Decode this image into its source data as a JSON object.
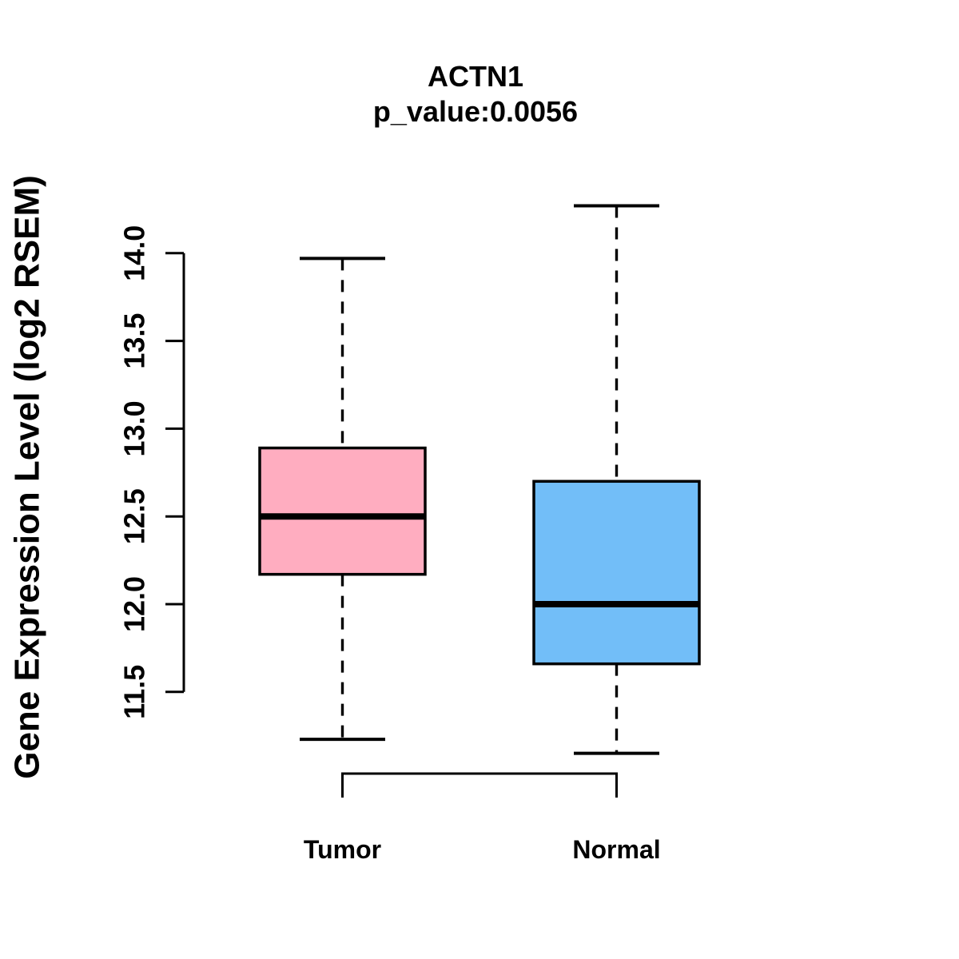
{
  "title": "ACTN1",
  "subtitle": "p_value:0.0056",
  "colors": {
    "tumor_fill": "#FFADC0",
    "normal_fill": "#72BEF8",
    "line": "#000000",
    "background": "#FFFFFF"
  },
  "chart_data": {
    "type": "boxplot",
    "title": "ACTN1",
    "subtitle": "p_value:0.0056",
    "p_value": 0.0056,
    "gene": "ACTN1",
    "xlabel": "",
    "ylabel": "Gene Expression Level (log2 RSEM)",
    "categories": [
      "Tumor",
      "Normal"
    ],
    "y_tick_labels": [
      "11.5",
      "12.0",
      "12.5",
      "13.0",
      "13.5",
      "14.0"
    ],
    "y_ticks": [
      11.5,
      12.0,
      12.5,
      13.0,
      13.5,
      14.0
    ],
    "ylim": [
      11.1,
      14.35
    ],
    "grid": false,
    "legend": "none",
    "series": [
      {
        "name": "Tumor",
        "fill": "#FFADC0",
        "whisker_low": 11.23,
        "q1": 12.17,
        "median": 12.5,
        "q3": 12.89,
        "whisker_high": 13.97
      },
      {
        "name": "Normal",
        "fill": "#72BEF8",
        "whisker_low": 11.15,
        "q1": 11.66,
        "median": 12.0,
        "q3": 12.7,
        "whisker_high": 14.27
      }
    ]
  }
}
